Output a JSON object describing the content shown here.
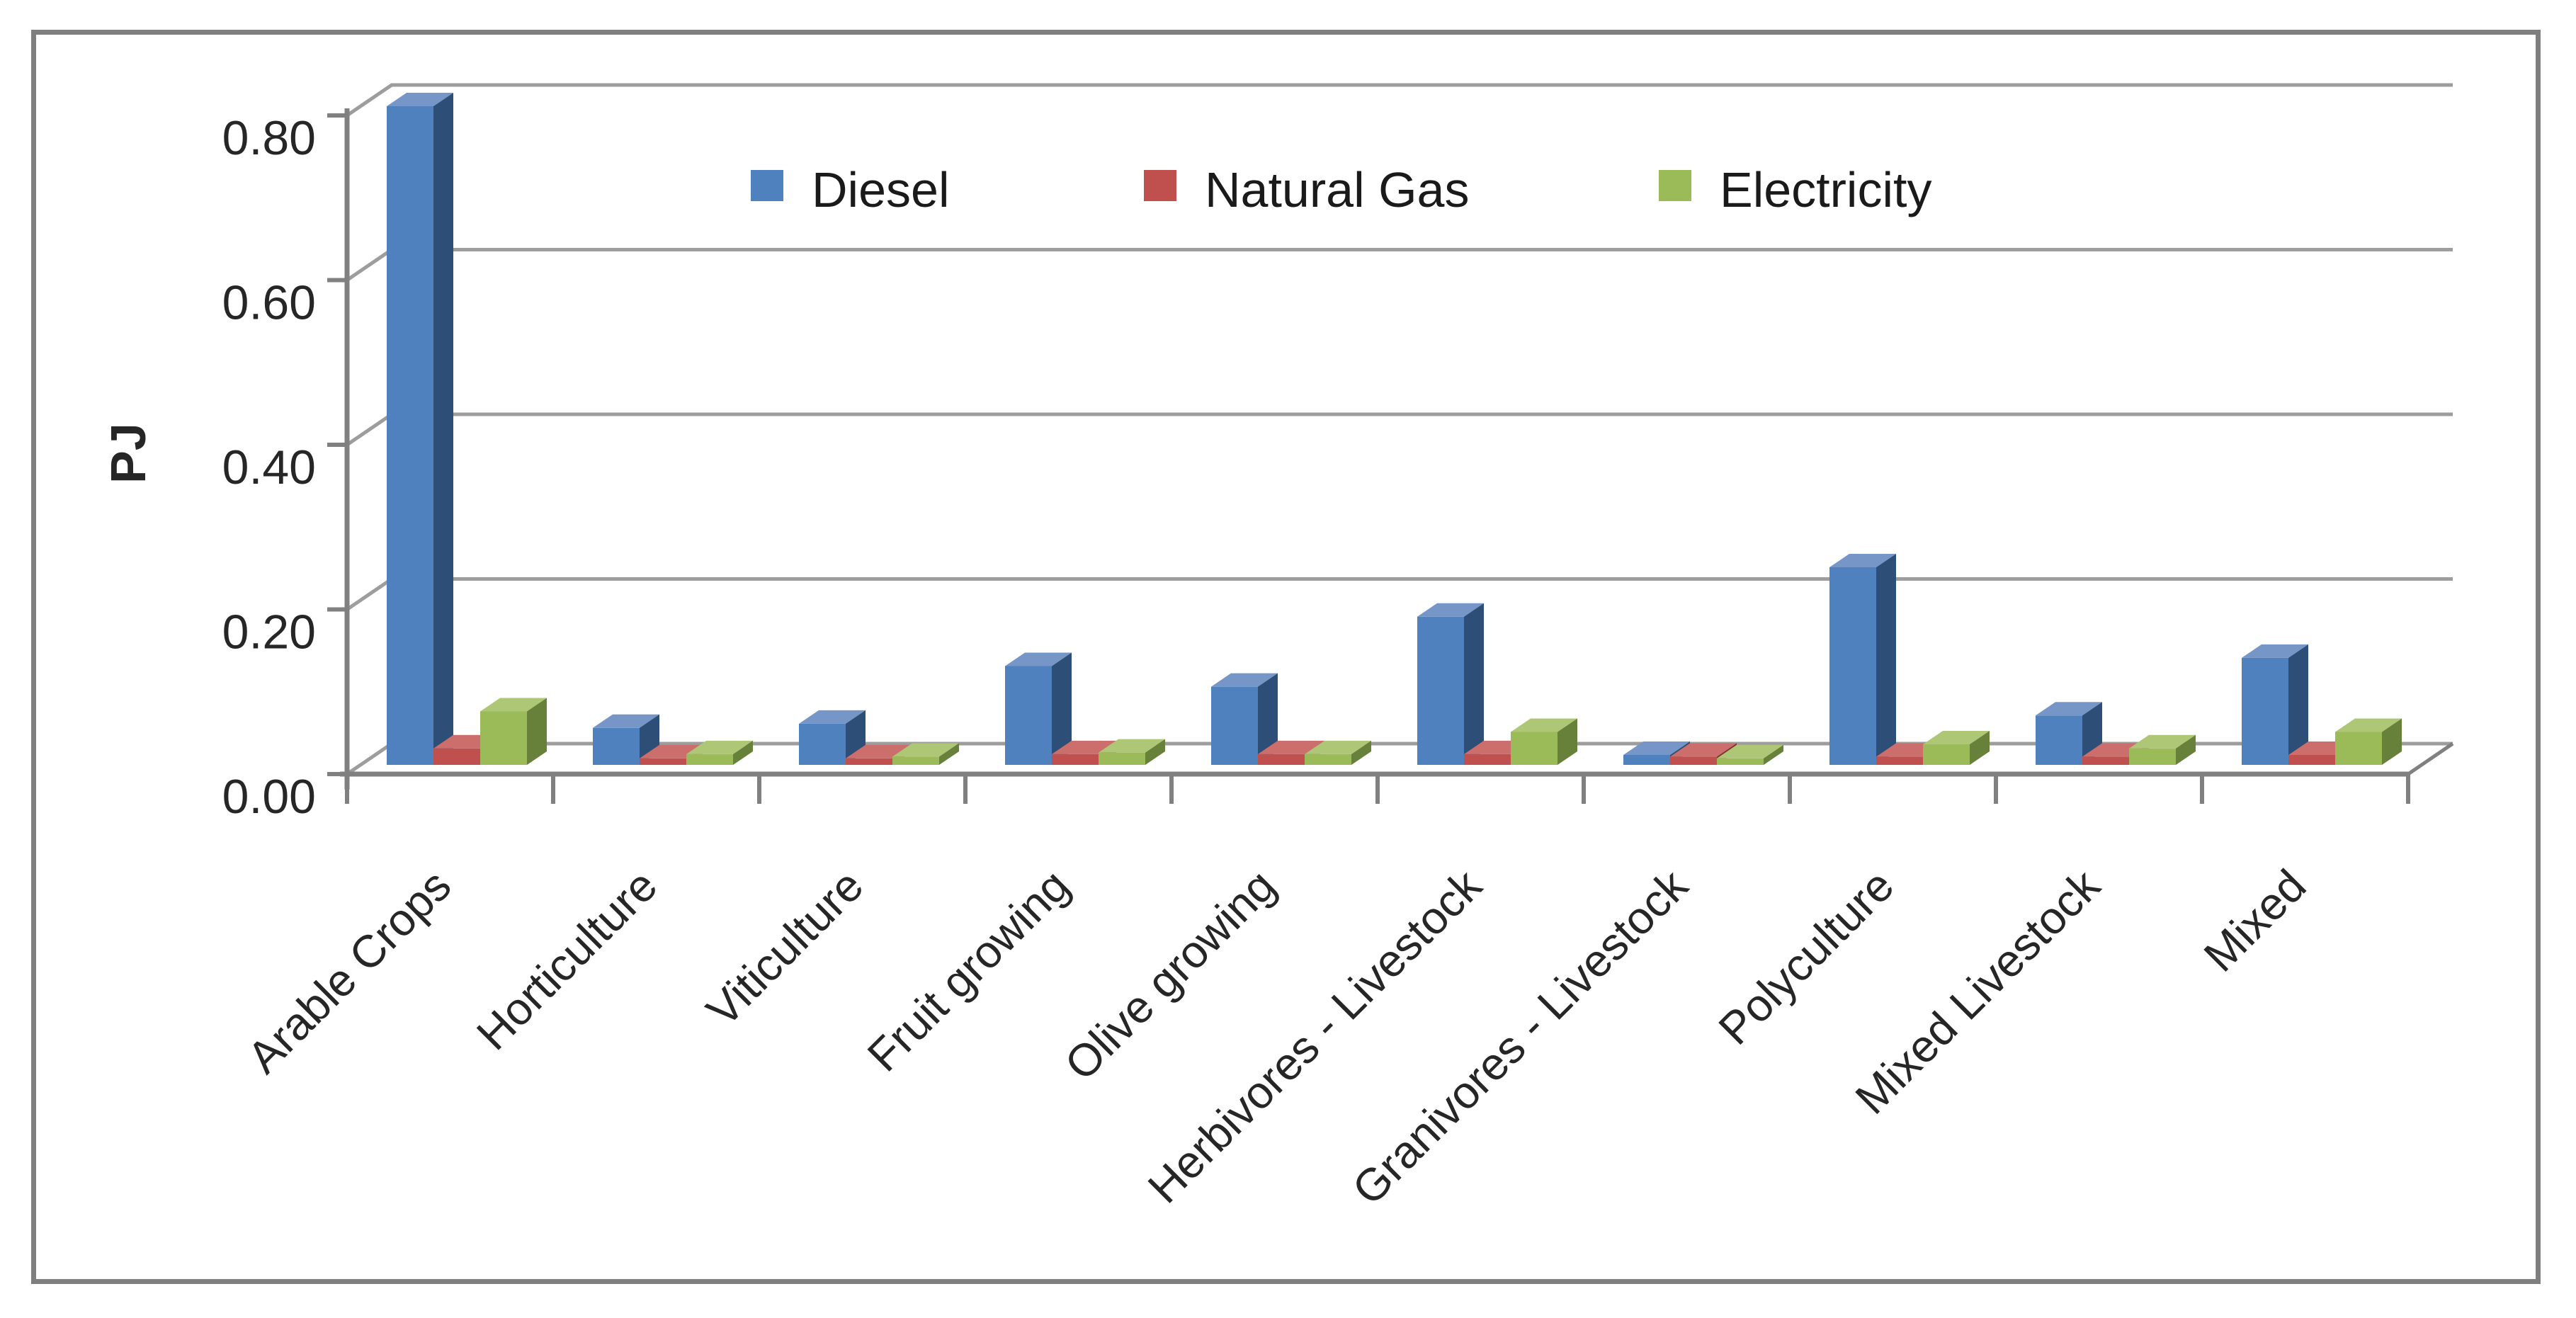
{
  "chart_data": {
    "type": "bar",
    "subtype": "3d-clustered-column",
    "title": "",
    "xlabel": "",
    "ylabel": "PJ",
    "ylim": [
      0,
      0.8
    ],
    "y_tick_labels": [
      "0.00",
      "0.20",
      "0.40",
      "0.60",
      "0.80"
    ],
    "y_tick_values": [
      0,
      0.2,
      0.4,
      0.6,
      0.8
    ],
    "grid": true,
    "legend_position": "top-inside",
    "categories": [
      "Arable Crops",
      "Horticulture",
      "Viticulture",
      "Fruit growing",
      "Olive growing",
      "Herbivores - Livestock",
      "Granivores - Livestock",
      "Polyculture",
      "Mixed Livestock",
      "Mixed"
    ],
    "series": [
      {
        "name": "Diesel",
        "color": "#4E81BD",
        "color_top": "#7596C7",
        "color_side": "#2D4E77",
        "values": [
          0.8,
          0.045,
          0.05,
          0.12,
          0.095,
          0.18,
          0.012,
          0.24,
          0.06,
          0.13
        ]
      },
      {
        "name": "Natural Gas",
        "color": "#BF504D",
        "color_top": "#CC6E6B",
        "color_side": "#7E3230",
        "values": [
          0.02,
          0.008,
          0.008,
          0.013,
          0.013,
          0.013,
          0.01,
          0.01,
          0.01,
          0.012
        ]
      },
      {
        "name": "Electricity",
        "color": "#9BBA58",
        "color_top": "#AEC776",
        "color_side": "#67803A",
        "values": [
          0.065,
          0.013,
          0.01,
          0.015,
          0.013,
          0.04,
          0.008,
          0.025,
          0.02,
          0.04
        ]
      }
    ],
    "colors": {
      "gridline": "#9d9d9d",
      "axis": "#808080",
      "frame_border": "#7f7f7f",
      "text": "#262626",
      "background": "#ffffff"
    }
  }
}
